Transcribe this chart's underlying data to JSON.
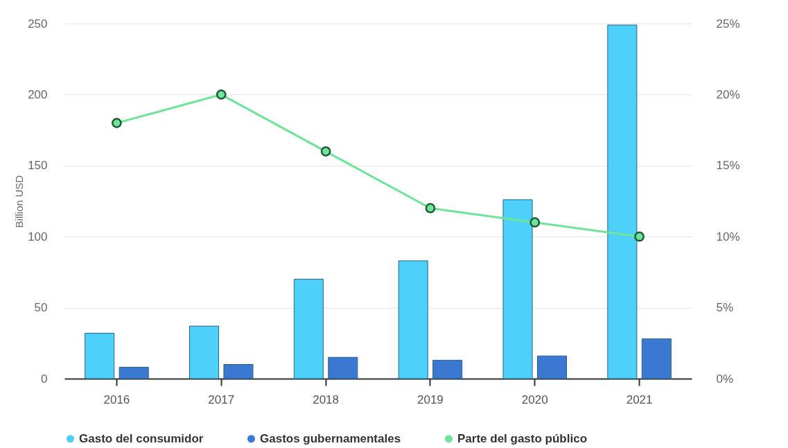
{
  "chart_data": {
    "type": "bar",
    "ylabel": "Billion USD",
    "categories": [
      "2016",
      "2017",
      "2018",
      "2019",
      "2020",
      "2021"
    ],
    "series": [
      {
        "name": "Gasto del consumidor",
        "color": "#4dd0f9",
        "values": [
          32,
          37,
          70,
          83,
          126,
          249
        ]
      },
      {
        "name": "Gastos gubernamentales",
        "color": "#3a78d2",
        "values": [
          8,
          10,
          15,
          13,
          16,
          28
        ]
      },
      {
        "name": "Parte del gasto público",
        "color": "#6fe39a",
        "type": "line",
        "axis": "y2",
        "values": [
          18,
          20,
          16,
          12,
          11,
          10
        ]
      }
    ],
    "ylim": [
      0,
      250
    ],
    "yticks": [
      0,
      50,
      100,
      150,
      200,
      250
    ],
    "y2lim": [
      0,
      25
    ],
    "y2ticks": [
      {
        "value": 0,
        "label": "0%"
      },
      {
        "value": 5,
        "label": "5%"
      },
      {
        "value": 10,
        "label": "10%"
      },
      {
        "value": 15,
        "label": "15%"
      },
      {
        "value": 20,
        "label": "20%"
      },
      {
        "value": 25,
        "label": "25%"
      }
    ],
    "grid": "y",
    "legend": "bottom",
    "marker": "circle",
    "line_style": "solid"
  }
}
